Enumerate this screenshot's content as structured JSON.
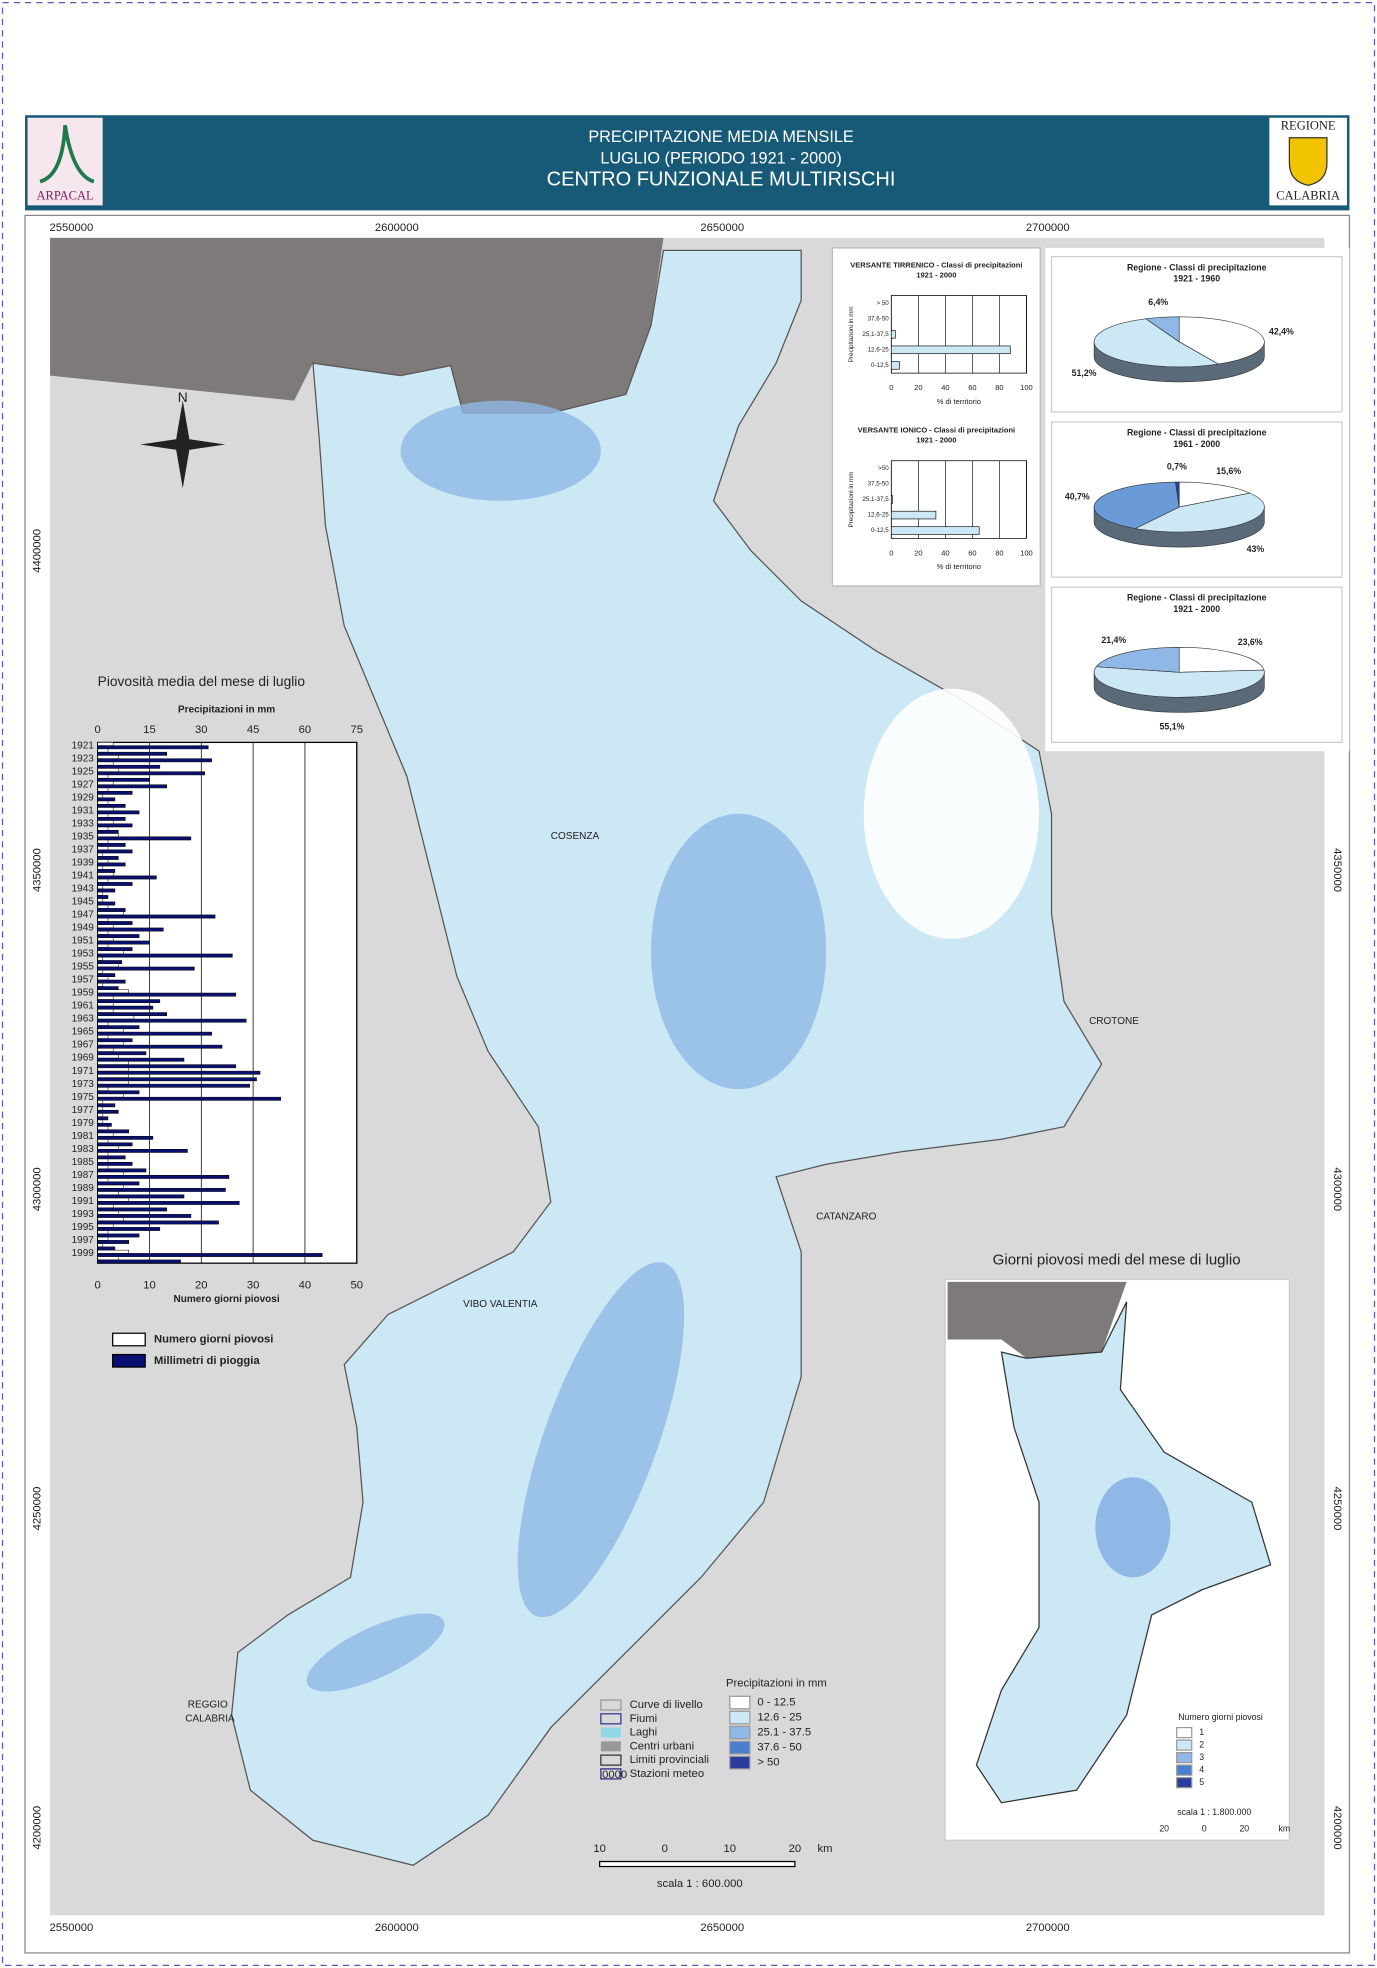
{
  "header": {
    "title_lines": [
      "PRECIPITAZIONE MEDIA MENSILE",
      "LUGLIO (PERIODO 1921 - 2000)",
      "CENTRO FUNZIONALE MULTIRISCHI"
    ],
    "logo_left": "ARPACAL",
    "logo_right": [
      "REGIONE",
      "CALABRIA"
    ]
  },
  "map": {
    "eastings": [
      2550000,
      2600000,
      2650000,
      2700000
    ],
    "northings": [
      4400000,
      4350000,
      4300000,
      4250000,
      4200000
    ],
    "north": "N",
    "places": [
      "COSENZA",
      "CROTONE",
      "CATANZARO",
      "VIBO VALENTIA",
      "REGGIO",
      "CALABRIA"
    ],
    "legend_items": [
      "Curve di livello",
      "Fiumi",
      "Laghi",
      "Centri urbani",
      "Limiti provinciali",
      "Stazioni meteo"
    ],
    "station_sample": "0000",
    "precip_legend_title": "Precipitazioni in mm",
    "precip_classes": [
      "0 - 12.5",
      "12.6 - 25",
      "25.1 - 37.5",
      "37.6 - 50",
      "> 50"
    ],
    "class_colors": [
      "#ffffff",
      "#cce8f4",
      "#8fb8e6",
      "#4a7ed0",
      "#2a3c9c"
    ],
    "scale_text": "scala 1 : 600.000",
    "scale_ticks": [
      "10",
      "0",
      "10",
      "20",
      "km"
    ]
  },
  "inset": {
    "title": "Giorni piovosi medi del mese di luglio",
    "legend_title": "Numero giorni piovosi",
    "classes": [
      "1",
      "2",
      "3",
      "4",
      "5"
    ],
    "scale_text": "scala 1 : 1.800.000",
    "scale_ticks": [
      "20",
      "0",
      "20",
      "km"
    ]
  },
  "chart_data": [
    {
      "type": "bar",
      "title": "Piovosità media del mese di luglio",
      "top_axis_label": "Precipitazioni in mm",
      "bottom_axis_label": "Numero giorni piovosi",
      "categories": [
        "1921",
        null,
        "1923",
        null,
        "1925",
        null,
        "1927",
        null,
        "1929",
        null,
        "1931",
        null,
        "1933",
        null,
        "1935",
        null,
        "1937",
        null,
        "1939",
        null,
        "1941",
        null,
        "1943",
        null,
        "1945",
        null,
        "1947",
        null,
        "1949",
        null,
        "1951",
        null,
        "1953",
        null,
        "1955",
        null,
        "1957",
        null,
        "1959",
        null,
        "1961",
        null,
        "1963",
        null,
        "1965",
        null,
        "1967",
        null,
        "1969",
        null,
        "1971",
        null,
        "1973",
        null,
        "1975",
        null,
        "1977",
        null,
        "1979",
        null,
        "1981",
        null,
        "1983",
        null,
        "1985",
        null,
        "1987",
        null,
        "1989",
        null,
        "1991",
        null,
        "1993",
        null,
        "1995",
        null,
        "1997",
        null,
        "1999",
        null
      ],
      "xlim": [
        0,
        75
      ],
      "xticks": [
        0,
        15,
        30,
        45,
        60,
        75
      ],
      "x2lim": [
        0,
        50
      ],
      "x2ticks": [
        0,
        10,
        20,
        30,
        40,
        50
      ],
      "series": [
        {
          "name": "Numero giorni piovosi",
          "color": "#ffffff",
          "axis": "x2",
          "values": [
            3,
            2,
            4,
            3,
            4,
            2,
            3,
            2,
            1,
            2,
            3,
            2,
            3,
            2,
            4,
            2,
            2,
            1,
            2,
            1,
            3,
            2,
            1,
            1,
            1,
            2,
            5,
            2,
            3,
            2,
            3,
            2,
            5,
            1,
            4,
            1,
            2,
            1,
            6,
            3,
            3,
            3,
            7,
            2,
            5,
            2,
            5,
            3,
            4,
            6,
            6,
            6,
            6,
            2,
            5,
            1,
            1,
            1,
            1,
            2,
            3,
            2,
            4,
            2,
            2,
            2,
            5,
            2,
            5,
            4,
            6,
            3,
            4,
            5,
            3,
            2,
            2,
            1,
            6,
            4
          ]
        },
        {
          "name": "Millimetri di pioggia",
          "color": "#0a1070",
          "values": [
            32,
            20,
            33,
            18,
            31,
            15,
            20,
            10,
            5,
            8,
            12,
            8,
            10,
            6,
            27,
            8,
            10,
            6,
            8,
            5,
            17,
            10,
            5,
            3,
            5,
            8,
            34,
            10,
            19,
            12,
            15,
            10,
            39,
            7,
            28,
            5,
            8,
            6,
            40,
            18,
            16,
            20,
            43,
            12,
            33,
            10,
            36,
            14,
            25,
            40,
            47,
            46,
            44,
            12,
            53,
            5,
            6,
            3,
            4,
            9,
            16,
            10,
            26,
            8,
            10,
            14,
            38,
            12,
            37,
            25,
            41,
            20,
            27,
            35,
            18,
            12,
            9,
            5,
            65,
            24
          ]
        }
      ]
    },
    {
      "type": "bar",
      "title": "VERSANTE TIRRENICO - Classi di precipitazioni",
      "subtitle": "1921 - 2000",
      "y_label": "Precipitazioni in mm",
      "x_label": "% di territorio",
      "categories": [
        "> 50",
        "37,6-50",
        "25,1-37,5",
        "12,6-25",
        "0-12,5"
      ],
      "values": [
        0,
        0,
        3,
        88,
        6
      ],
      "color": "#cce8f4",
      "xlim": [
        0,
        100
      ],
      "xticks": [
        0,
        20,
        40,
        60,
        80,
        100
      ]
    },
    {
      "type": "bar",
      "title": "VERSANTE IONICO - Classi di precipitazioni",
      "subtitle": "1921 - 2000",
      "y_label": "Precipitazioni in mm",
      "x_label": "% di territorio",
      "categories": [
        ">50",
        "37,5-50",
        "25,1-37,5",
        "12,6-25",
        "0-12,5"
      ],
      "values": [
        0,
        0,
        1,
        33,
        65
      ],
      "color": "#cce8f4",
      "xlim": [
        0,
        100
      ],
      "xticks": [
        0,
        20,
        40,
        60,
        80,
        100
      ]
    },
    {
      "type": "pie",
      "title": "Regione - Classi di precipitazione",
      "subtitle": "1921 - 1960",
      "values": [
        42.4,
        51.2,
        6.4
      ],
      "value_labels": [
        "42,4%",
        "51,2%",
        "6,4%"
      ],
      "colors": [
        "#ffffff",
        "#cce8f4",
        "#8fb8e6"
      ]
    },
    {
      "type": "pie",
      "title": "Regione - Classi di precipitazione",
      "subtitle": "1961 - 2000",
      "values": [
        15.6,
        43,
        40.7,
        0.7
      ],
      "value_labels": [
        "15,6%",
        "43%",
        "40,7%",
        "0,7%"
      ],
      "colors": [
        "#ffffff",
        "#cce8f4",
        "#6a9ad8",
        "#2a3c9c"
      ]
    },
    {
      "type": "pie",
      "title": "Regione - Classi di precipitazione",
      "subtitle": "1921 - 2000",
      "values": [
        23.6,
        55.1,
        21.4
      ],
      "value_labels": [
        "23,6%",
        "55,1%",
        "21,4%"
      ],
      "colors": [
        "#ffffff",
        "#cce8f4",
        "#8fb8e6"
      ]
    }
  ]
}
